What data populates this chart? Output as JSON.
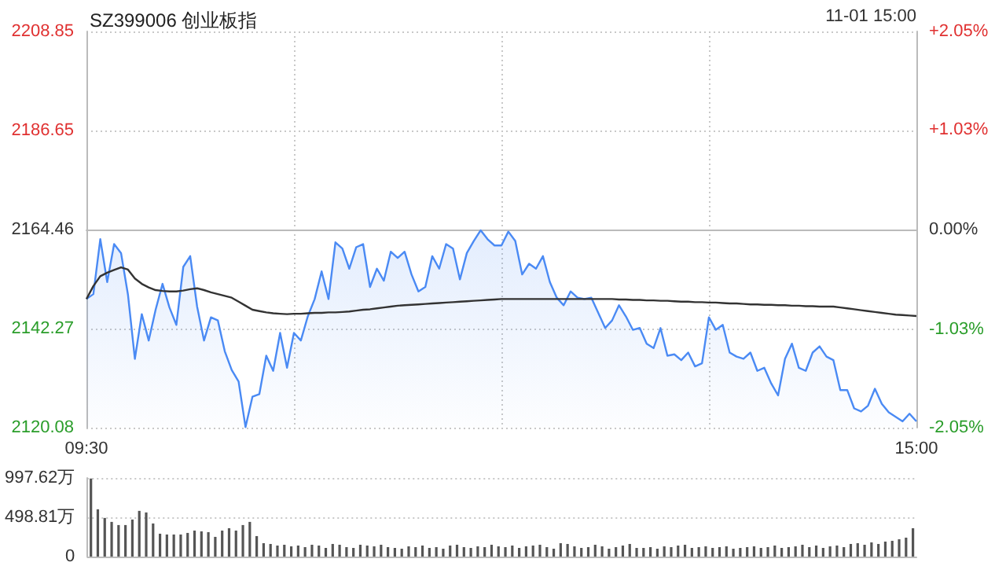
{
  "chart_data": [
    {
      "type": "line",
      "title": "SZ399006 创业板指",
      "annotations": [
        "11-01 15:00"
      ],
      "categories": [
        "09:30",
        null,
        null,
        null,
        null,
        null,
        null,
        null,
        null,
        null,
        null,
        null,
        null,
        null,
        null,
        null,
        null,
        null,
        null,
        null,
        null,
        null,
        null,
        null,
        null,
        null,
        null,
        null,
        null,
        null,
        null,
        null,
        null,
        null,
        null,
        null,
        null,
        null,
        null,
        null,
        null,
        null,
        null,
        null,
        null,
        null,
        null,
        null,
        null,
        null,
        null,
        null,
        null,
        null,
        null,
        null,
        null,
        null,
        null,
        null,
        null,
        null,
        null,
        null,
        null,
        null,
        null,
        null,
        null,
        null,
        null,
        null,
        null,
        null,
        null,
        null,
        null,
        null,
        null,
        null,
        null,
        null,
        null,
        null,
        null,
        null,
        null,
        null,
        null,
        null,
        null,
        null,
        null,
        null,
        null,
        null,
        null,
        null,
        null,
        null,
        null,
        null,
        null,
        null,
        null,
        null,
        null,
        null,
        null,
        null,
        null,
        null,
        null,
        null,
        null,
        null,
        null,
        null,
        null,
        null,
        "15:00"
      ],
      "series": [
        {
          "type": "area",
          "color": "#4a8af4",
          "values": [
            2148.9,
            2150.0,
            2162.3,
            2152.7,
            2161.2,
            2159.2,
            2149.9,
            2135.5,
            2145.5,
            2139.6,
            2146.5,
            2152.3,
            2147.0,
            2143.1,
            2156.1,
            2158.5,
            2147.2,
            2139.6,
            2144.8,
            2144.1,
            2137.2,
            2133.0,
            2130.4,
            2120.2,
            2127.0,
            2127.6,
            2136.2,
            2132.8,
            2141.3,
            2133.5,
            2141.3,
            2139.6,
            2145.0,
            2148.9,
            2155.1,
            2148.9,
            2161.6,
            2160.2,
            2155.7,
            2160.5,
            2161.2,
            2151.6,
            2155.7,
            2153.0,
            2159.5,
            2158.1,
            2159.5,
            2154.4,
            2150.6,
            2151.6,
            2158.5,
            2155.7,
            2161.2,
            2160.2,
            2153.3,
            2159.2,
            2161.9,
            2164.3,
            2162.3,
            2160.9,
            2160.9,
            2164.0,
            2161.9,
            2154.4,
            2156.8,
            2155.7,
            2158.5,
            2152.7,
            2149.2,
            2147.5,
            2150.6,
            2149.2,
            2148.9,
            2149.2,
            2145.8,
            2142.4,
            2144.1,
            2147.5,
            2145.0,
            2142.0,
            2142.4,
            2138.9,
            2137.9,
            2142.4,
            2136.2,
            2136.5,
            2135.2,
            2136.9,
            2133.8,
            2134.5,
            2144.8,
            2142.0,
            2143.1,
            2136.9,
            2136.0,
            2135.5,
            2136.9,
            2132.8,
            2133.5,
            2130.0,
            2127.3,
            2135.5,
            2138.9,
            2133.5,
            2132.8,
            2136.9,
            2138.3,
            2136.0,
            2135.2,
            2128.5,
            2128.5,
            2124.4,
            2123.7,
            2125.0,
            2128.8,
            2125.4,
            2123.5,
            2122.5,
            2121.5,
            2123.2,
            2121.5
          ]
        },
        {
          "type": "line",
          "color": "#333333",
          "values": [
            2148.9,
            2151.8,
            2154.0,
            2154.8,
            2155.4,
            2156.0,
            2155.5,
            2153.5,
            2152.3,
            2151.5,
            2150.9,
            2150.7,
            2150.6,
            2150.6,
            2150.8,
            2151.1,
            2151.3,
            2150.9,
            2150.4,
            2150.0,
            2149.6,
            2149.2,
            2148.3,
            2147.4,
            2146.5,
            2146.2,
            2145.9,
            2145.7,
            2145.6,
            2145.5,
            2145.6,
            2145.6,
            2145.7,
            2145.8,
            2145.8,
            2145.9,
            2145.9,
            2146.0,
            2146.1,
            2146.3,
            2146.5,
            2146.6,
            2146.8,
            2147.0,
            2147.2,
            2147.4,
            2147.5,
            2147.6,
            2147.7,
            2147.8,
            2147.9,
            2148.0,
            2148.1,
            2148.2,
            2148.3,
            2148.4,
            2148.5,
            2148.6,
            2148.7,
            2148.8,
            2148.9,
            2148.9,
            2148.9,
            2148.9,
            2148.9,
            2148.9,
            2148.9,
            2148.9,
            2148.9,
            2148.9,
            2148.9,
            2148.9,
            2148.9,
            2148.9,
            2148.9,
            2148.9,
            2148.9,
            2148.8,
            2148.8,
            2148.7,
            2148.7,
            2148.6,
            2148.6,
            2148.5,
            2148.5,
            2148.4,
            2148.3,
            2148.3,
            2148.2,
            2148.2,
            2148.1,
            2148.1,
            2148.0,
            2147.9,
            2147.9,
            2147.8,
            2147.7,
            2147.7,
            2147.6,
            2147.6,
            2147.5,
            2147.5,
            2147.4,
            2147.4,
            2147.3,
            2147.3,
            2147.2,
            2147.2,
            2147.2,
            2147.0,
            2146.8,
            2146.6,
            2146.4,
            2146.2,
            2146.0,
            2145.8,
            2145.6,
            2145.4,
            2145.3,
            2145.2,
            2145.1
          ]
        }
      ],
      "ylim": [
        2120.08,
        2208.85
      ],
      "yticks": [
        2120.08,
        2142.27,
        2164.46,
        2186.65,
        2208.85
      ],
      "y2lim": [
        -2.05,
        2.05
      ],
      "y2ticks": [
        {
          "value": -2.05,
          "label": "-2.05%"
        },
        {
          "value": -1.03,
          "label": "-1.03%"
        },
        {
          "value": 0,
          "label": "0.00%"
        },
        {
          "value": 1.03,
          "label": "+1.03%"
        },
        {
          "value": 2.05,
          "label": "+2.05%"
        }
      ],
      "grid": true
    },
    {
      "type": "bar",
      "color": "#555555",
      "tick_labels": "y",
      "grid": "y",
      "categories": [
        null,
        null,
        null,
        null,
        null,
        null,
        null,
        null,
        null,
        null,
        null,
        null,
        null,
        null,
        null,
        null,
        null,
        null,
        null,
        null,
        null,
        null,
        null,
        null,
        null,
        null,
        null,
        null,
        null,
        null,
        null,
        null,
        null,
        null,
        null,
        null,
        null,
        null,
        null,
        null,
        null,
        null,
        null,
        null,
        null,
        null,
        null,
        null,
        null,
        null,
        null,
        null,
        null,
        null,
        null,
        null,
        null,
        null,
        null,
        null,
        null,
        null,
        null,
        null,
        null,
        null,
        null,
        null,
        null,
        null,
        null,
        null,
        null,
        null,
        null,
        null,
        null,
        null,
        null,
        null,
        null,
        null,
        null,
        null,
        null,
        null,
        null,
        null,
        null,
        null,
        null,
        null,
        null,
        null,
        null,
        null,
        null,
        null,
        null,
        null,
        null,
        null,
        null,
        null,
        null,
        null,
        null,
        null,
        null,
        null,
        null,
        null,
        null,
        null,
        null,
        null,
        null,
        null,
        null,
        null
      ],
      "values": [
        990,
        600,
        490,
        440,
        400,
        400,
        470,
        580,
        560,
        420,
        290,
        280,
        280,
        280,
        300,
        330,
        320,
        310,
        250,
        330,
        360,
        330,
        400,
        440,
        260,
        170,
        160,
        140,
        150,
        130,
        140,
        120,
        150,
        140,
        110,
        160,
        150,
        120,
        110,
        150,
        140,
        130,
        150,
        120,
        110,
        100,
        130,
        120,
        140,
        110,
        120,
        100,
        140,
        150,
        120,
        110,
        130,
        120,
        150,
        130,
        120,
        140,
        110,
        130,
        140,
        150,
        120,
        100,
        170,
        160,
        130,
        110,
        120,
        150,
        130,
        100,
        120,
        140,
        160,
        110,
        110,
        120,
        100,
        130,
        120,
        140,
        150,
        110,
        120,
        130,
        110,
        120,
        130,
        100,
        110,
        120,
        130,
        110,
        120,
        140,
        110,
        120,
        130,
        150,
        120,
        140,
        110,
        130,
        140,
        120,
        160,
        170,
        150,
        180,
        160,
        190,
        200,
        220,
        240,
        360
      ],
      "ylim": [
        0,
        997.62
      ],
      "yticks": [
        0,
        {
          "value": 498.81,
          "label": "498.81万"
        },
        {
          "value": 997.62,
          "label": "997.62万"
        }
      ]
    }
  ]
}
